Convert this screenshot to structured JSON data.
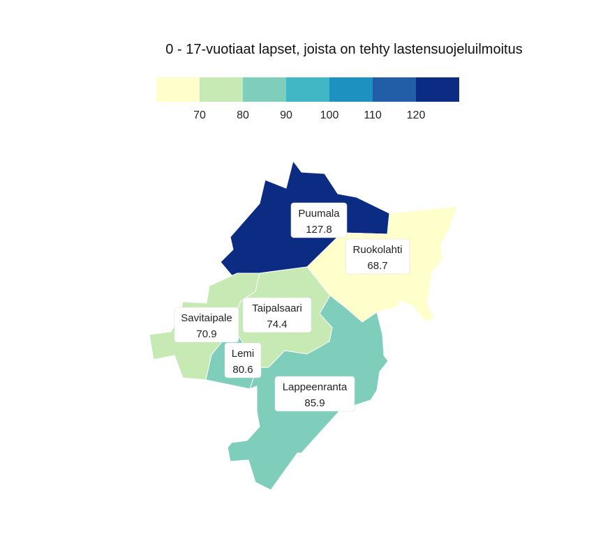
{
  "title": "0 - 17-vuotiaat lapset, joista on tehty lastensuojeluilmoitus",
  "legend": {
    "colors": [
      "#ffffcc",
      "#c7e9b4",
      "#7fcdbb",
      "#41b6c4",
      "#1d91c0",
      "#225ea8",
      "#0c2c84"
    ],
    "ticks": [
      "70",
      "80",
      "90",
      "100",
      "110",
      "120"
    ],
    "breaks": [
      70,
      80,
      90,
      100,
      110,
      120
    ]
  },
  "regions": [
    {
      "name": "Puumala",
      "value": "127.8"
    },
    {
      "name": "Ruokolahti",
      "value": "68.7"
    },
    {
      "name": "Taipalsaari",
      "value": "74.4"
    },
    {
      "name": "Savitaipale",
      "value": "70.9"
    },
    {
      "name": "Lemi",
      "value": "80.6"
    },
    {
      "name": "Lappeenranta",
      "value": "85.9"
    }
  ]
}
